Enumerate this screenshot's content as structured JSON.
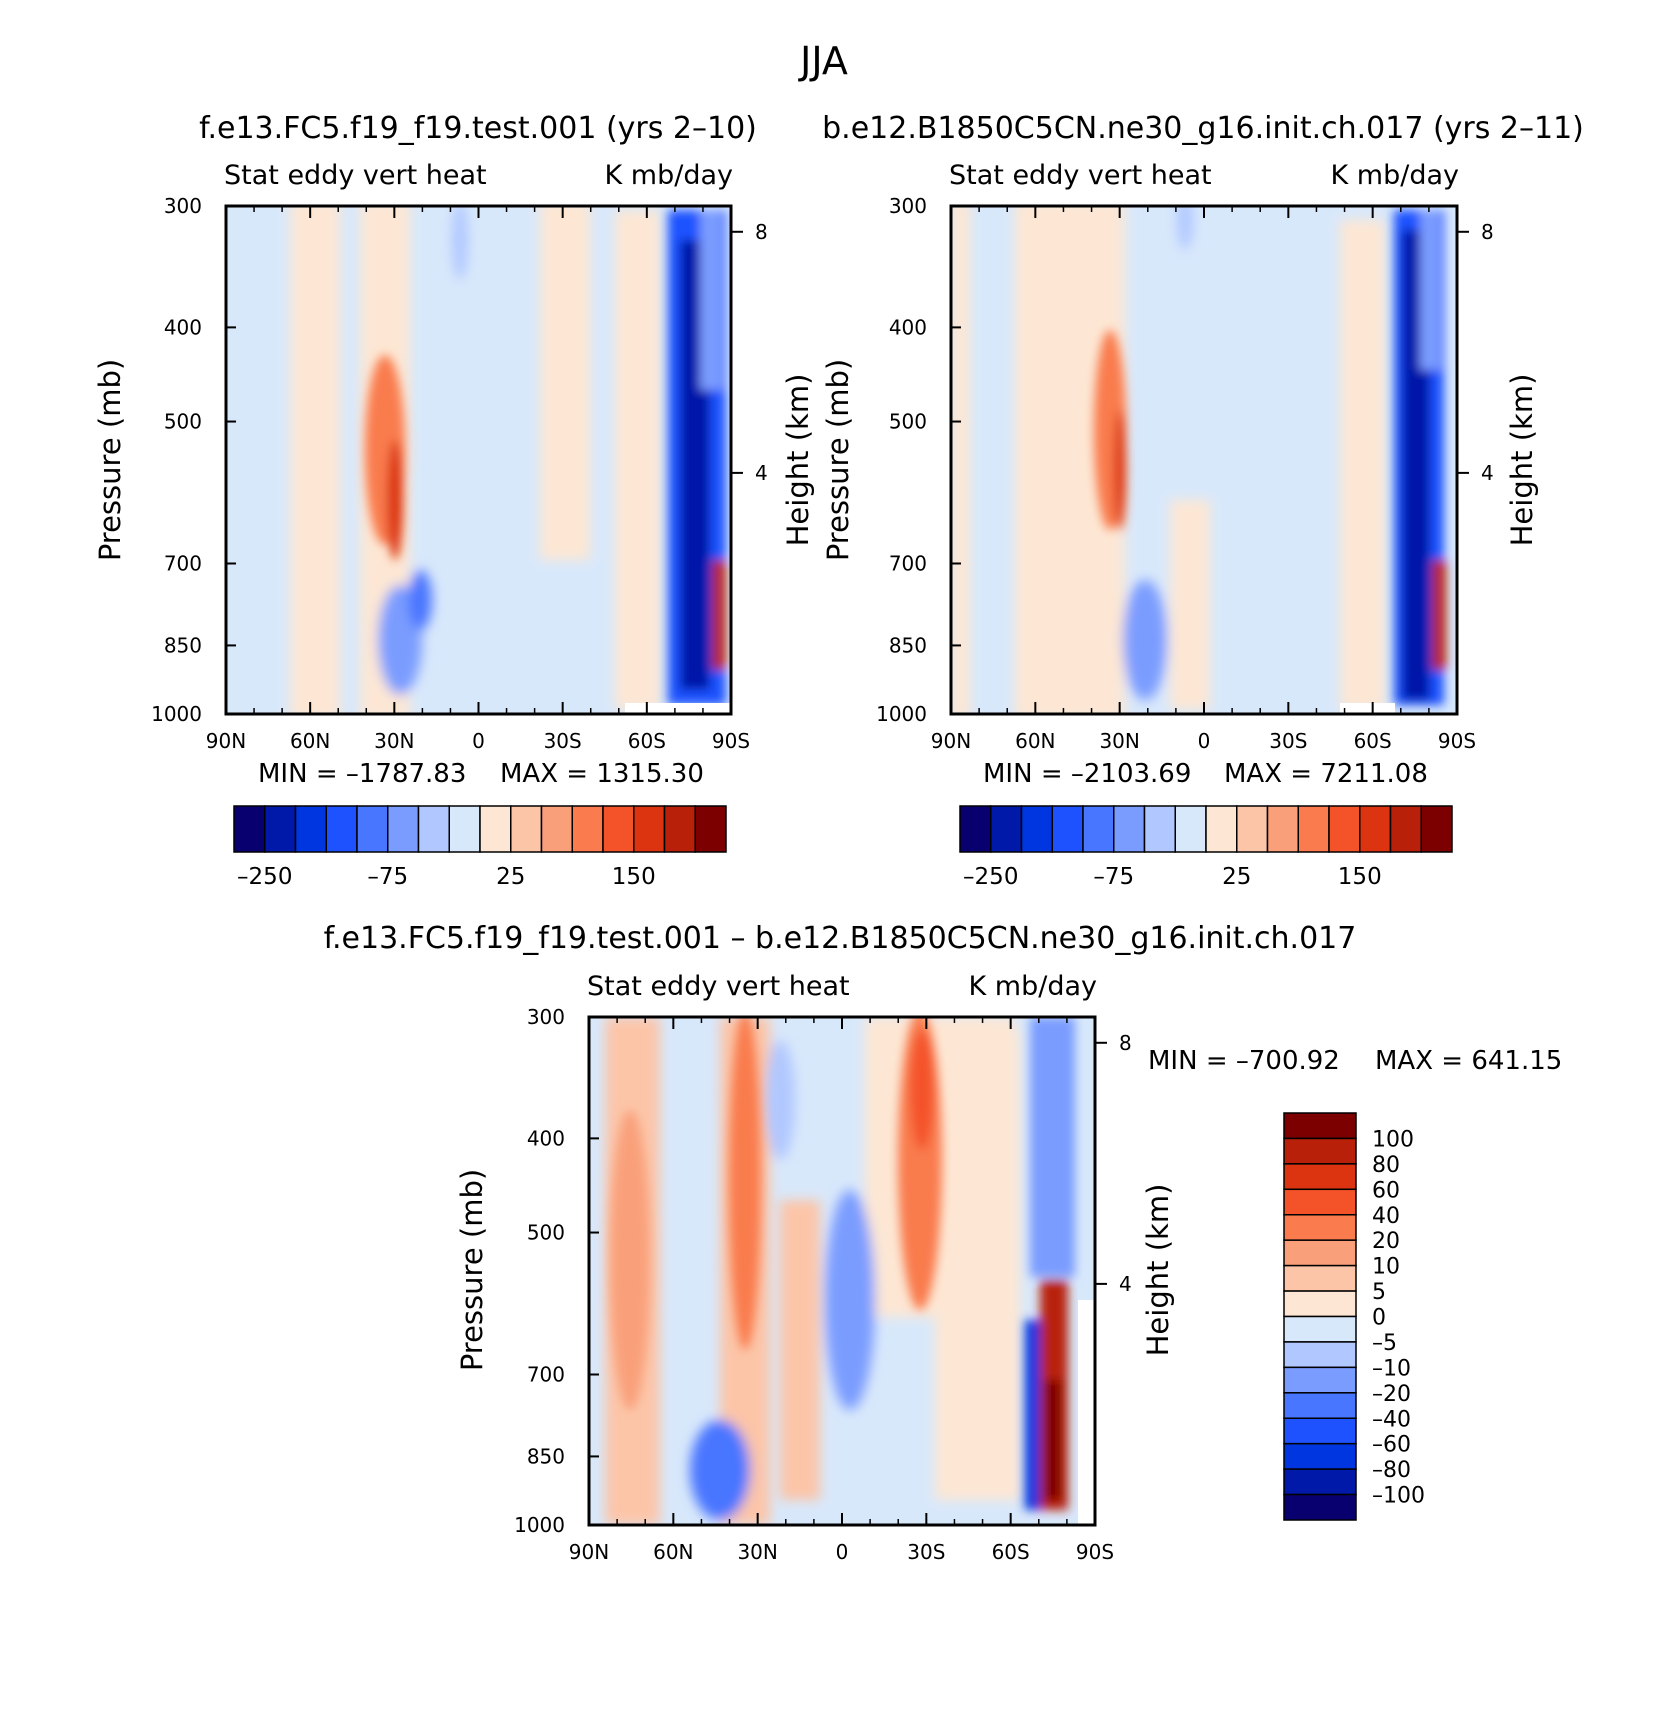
{
  "figure": {
    "main_title": "JJA",
    "run_a": "f.e13.FC5.f19_f19.test.001 (yrs 2–10)",
    "run_b": "b.e12.B1850C5CN.ne30_g16.init.ch.017 (yrs 2–11)",
    "diff_title": "f.e13.FC5.f19_f19.test.001 – b.e12.B1850C5CN.ne30_g16.init.ch.017"
  },
  "chart_data": [
    {
      "type": "heatmap",
      "panel": "run_a",
      "variable": "Stat eddy vert heat",
      "units": "K mb/day",
      "ylabel": "Pressure (mb)",
      "ylabel_right": "Height (km)",
      "x_ticks": [
        "90N",
        "60N",
        "30N",
        "0",
        "30S",
        "60S",
        "90S"
      ],
      "y_ticks": [
        300,
        400,
        500,
        700,
        850,
        1000
      ],
      "y_right_ticks": [
        8,
        4
      ],
      "xlim": [
        "90N",
        "90S"
      ],
      "ylim": [
        1000,
        300
      ],
      "yscale": "log",
      "min_label": "MIN = –1787.83",
      "max_label": "MAX = 1315.30",
      "min": -1787.83,
      "max": 1315.3,
      "colorbar_labels": [
        "–250",
        "–75",
        "25",
        "150"
      ],
      "colorbar_colors": [
        "#08006e",
        "#0019a8",
        "#0036e0",
        "#1f52ff",
        "#4876ff",
        "#7a9cff",
        "#b0c8ff",
        "#d8e8fb",
        "#fde7d4",
        "#fcc5a8",
        "#f9a07a",
        "#f97b4e",
        "#f4532a",
        "#dc3410",
        "#b8200a",
        "#7d0000"
      ],
      "features": [
        {
          "lat": 27,
          "p_top": 380,
          "p_bot": 690,
          "value": 60
        },
        {
          "lat": -75,
          "p_top": 300,
          "p_bot": 1000,
          "value": -250
        },
        {
          "lat": -87,
          "p_top": 650,
          "p_bot": 950,
          "value": 150
        }
      ]
    },
    {
      "type": "heatmap",
      "panel": "run_b",
      "variable": "Stat eddy vert heat",
      "units": "K mb/day",
      "ylabel": "Pressure (mb)",
      "ylabel_right": "Height (km)",
      "x_ticks": [
        "90N",
        "60N",
        "30N",
        "0",
        "30S",
        "60S",
        "90S"
      ],
      "y_ticks": [
        300,
        400,
        500,
        700,
        850,
        1000
      ],
      "y_right_ticks": [
        8,
        4
      ],
      "xlim": [
        "90N",
        "90S"
      ],
      "ylim": [
        1000,
        300
      ],
      "yscale": "log",
      "min_label": "MIN = –2103.69",
      "max_label": "MAX = 7211.08",
      "min": -2103.69,
      "max": 7211.08,
      "colorbar_labels": [
        "–250",
        "–75",
        "25",
        "150"
      ],
      "colorbar_colors": [
        "#08006e",
        "#0019a8",
        "#0036e0",
        "#1f52ff",
        "#4876ff",
        "#7a9cff",
        "#b0c8ff",
        "#d8e8fb",
        "#fde7d4",
        "#fcc5a8",
        "#f9a07a",
        "#f97b4e",
        "#f4532a",
        "#dc3410",
        "#b8200a",
        "#7d0000"
      ],
      "features": [
        {
          "lat": 30,
          "p_top": 350,
          "p_bot": 700,
          "value": 50
        },
        {
          "lat": -76,
          "p_top": 300,
          "p_bot": 1000,
          "value": -250
        },
        {
          "lat": -86,
          "p_top": 680,
          "p_bot": 950,
          "value": 150
        }
      ]
    },
    {
      "type": "heatmap",
      "panel": "difference",
      "variable": "Stat eddy vert heat",
      "units": "K mb/day",
      "ylabel": "Pressure (mb)",
      "ylabel_right": "Height (km)",
      "x_ticks": [
        "90N",
        "60N",
        "30N",
        "0",
        "30S",
        "60S",
        "90S"
      ],
      "y_ticks": [
        300,
        400,
        500,
        700,
        850,
        1000
      ],
      "y_right_ticks": [
        8,
        4
      ],
      "xlim": [
        "90N",
        "90S"
      ],
      "ylim": [
        1000,
        300
      ],
      "yscale": "log",
      "min_label": "MIN = –700.92",
      "max_label": "MAX = 641.15",
      "min": -700.92,
      "max": 641.15,
      "colorbar_levels": [
        100,
        80,
        60,
        40,
        20,
        10,
        5,
        0,
        -5,
        -10,
        -20,
        -40,
        -60,
        -80,
        -100
      ],
      "colorbar_labels": [
        "100",
        "80",
        "60",
        "40",
        "20",
        "10",
        "5",
        "0",
        "–5",
        "–10",
        "–20",
        "–40",
        "–60",
        "–80",
        "–100"
      ],
      "colorbar_colors": [
        "#7d0000",
        "#b8200a",
        "#dc3410",
        "#f4532a",
        "#f97b4e",
        "#f9a07a",
        "#fcc5a8",
        "#fde7d4",
        "#d8e8fb",
        "#b0c8ff",
        "#7a9cff",
        "#4876ff",
        "#1f52ff",
        "#0036e0",
        "#0019a8",
        "#08006e"
      ],
      "features": [
        {
          "lat": 68,
          "p_top": 380,
          "p_bot": 950,
          "value": 20
        },
        {
          "lat": 32,
          "p_top": 300,
          "p_bot": 950,
          "value": 40
        },
        {
          "lat": -26,
          "p_top": 300,
          "p_bot": 680,
          "value": 30
        },
        {
          "lat": -78,
          "p_top": 500,
          "p_bot": 1000,
          "value": 100
        },
        {
          "lat": -72,
          "p_top": 550,
          "p_bot": 1000,
          "value": -100
        }
      ]
    }
  ]
}
